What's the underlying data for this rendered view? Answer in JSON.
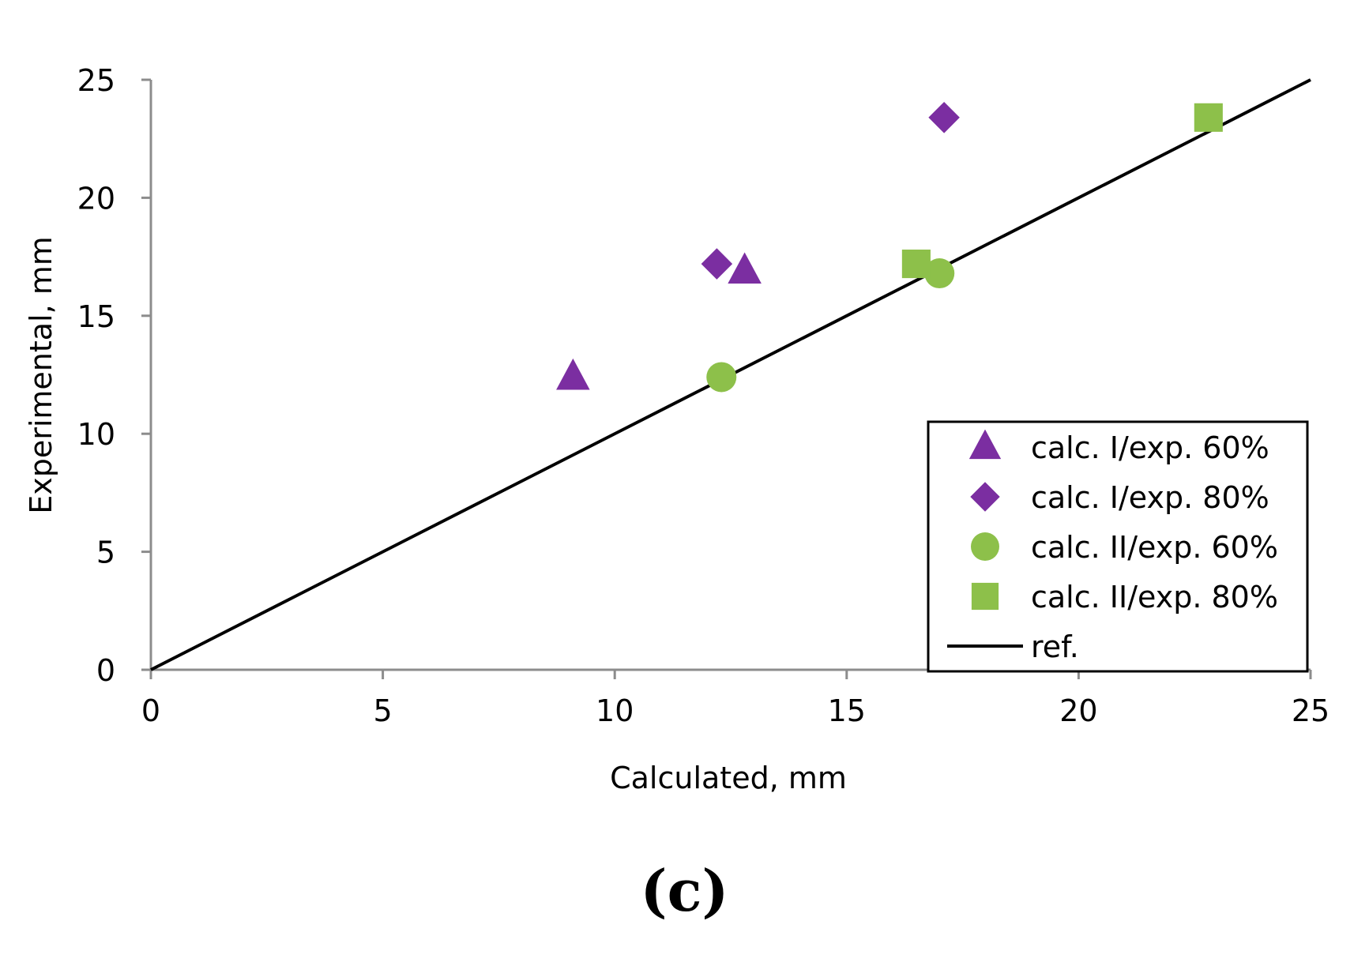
{
  "chart_data": {
    "type": "scatter",
    "title": "",
    "xlabel": "Calculated, mm",
    "ylabel": "Experimental, mm",
    "xlim": [
      0,
      25
    ],
    "ylim": [
      0,
      25
    ],
    "xticks": [
      "0",
      "5",
      "10",
      "15",
      "20",
      "25"
    ],
    "yticks": [
      "0",
      "5",
      "10",
      "15",
      "20",
      "25"
    ],
    "grid": false,
    "legend_position": "bottom-right",
    "series": [
      {
        "name": "calc. I/exp. 60%",
        "marker": "triangle",
        "color": "#7b2ea1",
        "points": [
          [
            9.1,
            12.4
          ],
          [
            12.8,
            16.9
          ]
        ]
      },
      {
        "name": "calc. I/exp. 80%",
        "marker": "diamond",
        "color": "#7b2ea1",
        "points": [
          [
            12.2,
            17.2
          ],
          [
            17.1,
            23.4
          ]
        ]
      },
      {
        "name": "calc. II/exp. 60%",
        "marker": "circle",
        "color": "#8dc04a",
        "points": [
          [
            12.3,
            12.4
          ],
          [
            17.0,
            16.8
          ]
        ]
      },
      {
        "name": "calc. II/exp. 80%",
        "marker": "square",
        "color": "#8dc04a",
        "points": [
          [
            16.5,
            17.2
          ],
          [
            22.8,
            23.4
          ]
        ]
      },
      {
        "name": "ref.",
        "marker": "line",
        "color": "#000000",
        "points": [
          [
            0,
            0
          ],
          [
            25,
            25
          ]
        ]
      }
    ]
  },
  "caption": "(c)"
}
